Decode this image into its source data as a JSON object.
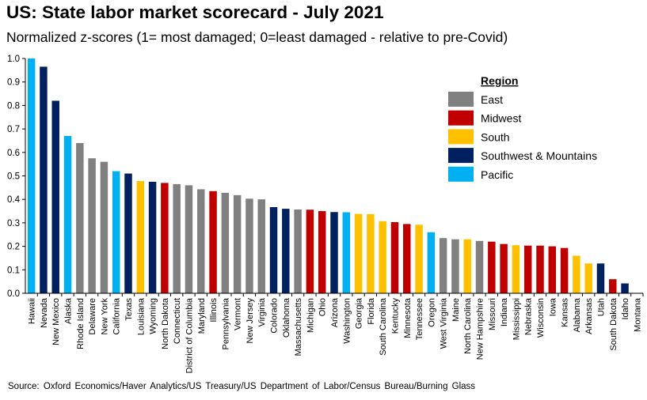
{
  "title": "US: State labor market scorecard - July 2021",
  "subtitle": "Normalized z-scores (1= most damaged; 0=least damaged - relative to pre-Covid)",
  "source": "Source: Oxford Economics/Haver Analytics/US Treasury/US Department of Labor/Census Bureau/Burning Glass",
  "legend": {
    "title": "Region",
    "items": [
      {
        "key": "East",
        "label": "East",
        "color": "#808080"
      },
      {
        "key": "Midwest",
        "label": "Midwest",
        "color": "#c00000"
      },
      {
        "key": "South",
        "label": "South",
        "color": "#ffc000"
      },
      {
        "key": "SouthwestMountains",
        "label": "Southwest & Mountains",
        "color": "#002060"
      },
      {
        "key": "Pacific",
        "label": "Pacific",
        "color": "#00b0f0"
      }
    ]
  },
  "chart_data": {
    "type": "bar",
    "title": "US: State labor market scorecard - July 2021",
    "subtitle": "Normalized z-scores (1= most damaged; 0=least damaged - relative to pre-Covid)",
    "xlabel": "",
    "ylabel": "",
    "ylim": [
      0,
      1.0
    ],
    "yticks": [
      "0.0",
      "0.1",
      "0.2",
      "0.3",
      "0.4",
      "0.5",
      "0.6",
      "0.7",
      "0.8",
      "0.9",
      "1.0"
    ],
    "grid": false,
    "legend_position": "right",
    "categories": [
      "Hawaii",
      "Nevada",
      "New Mexico",
      "Alaska",
      "Rhode Island",
      "Delaware",
      "New York",
      "California",
      "Texas",
      "Louisiana",
      "Wyoming",
      "North Dakota",
      "Connecticut",
      "District of Columbia",
      "Maryland",
      "Illinois",
      "Pennsylvania",
      "Vermont",
      "New Jersey",
      "Virginia",
      "Colorado",
      "Oklahoma",
      "Massachusetts",
      "Michigan",
      "Ohio",
      "Arizona",
      "Washington",
      "Georgia",
      "Florida",
      "South Carolina",
      "Kentucky",
      "Minnesota",
      "Tennessee",
      "Oregon",
      "West Virginia",
      "Maine",
      "North Carolina",
      "New Hampshire",
      "Missouri",
      "Indiana",
      "Mississippi",
      "Nebraska",
      "Wisconsin",
      "Iowa",
      "Kansas",
      "Alabama",
      "Arkansas",
      "Utah",
      "South Dakota",
      "Idaho",
      "Montana"
    ],
    "values": [
      1.0,
      0.965,
      0.82,
      0.67,
      0.64,
      0.575,
      0.56,
      0.52,
      0.51,
      0.478,
      0.475,
      0.47,
      0.465,
      0.46,
      0.443,
      0.435,
      0.428,
      0.418,
      0.403,
      0.4,
      0.367,
      0.36,
      0.357,
      0.356,
      0.35,
      0.346,
      0.345,
      0.338,
      0.337,
      0.307,
      0.303,
      0.295,
      0.292,
      0.26,
      0.235,
      0.23,
      0.23,
      0.223,
      0.22,
      0.21,
      0.205,
      0.203,
      0.203,
      0.2,
      0.193,
      0.16,
      0.127,
      0.127,
      0.06,
      0.042,
      0.0
    ],
    "regions": [
      "Pacific",
      "SouthwestMountains",
      "SouthwestMountains",
      "Pacific",
      "East",
      "East",
      "East",
      "Pacific",
      "SouthwestMountains",
      "South",
      "SouthwestMountains",
      "Midwest",
      "East",
      "East",
      "East",
      "Midwest",
      "East",
      "East",
      "East",
      "East",
      "SouthwestMountains",
      "SouthwestMountains",
      "East",
      "Midwest",
      "Midwest",
      "SouthwestMountains",
      "Pacific",
      "South",
      "South",
      "South",
      "Midwest",
      "Midwest",
      "South",
      "Pacific",
      "East",
      "East",
      "South",
      "East",
      "Midwest",
      "Midwest",
      "South",
      "Midwest",
      "Midwest",
      "Midwest",
      "Midwest",
      "South",
      "South",
      "SouthwestMountains",
      "Midwest",
      "SouthwestMountains",
      "SouthwestMountains"
    ]
  }
}
